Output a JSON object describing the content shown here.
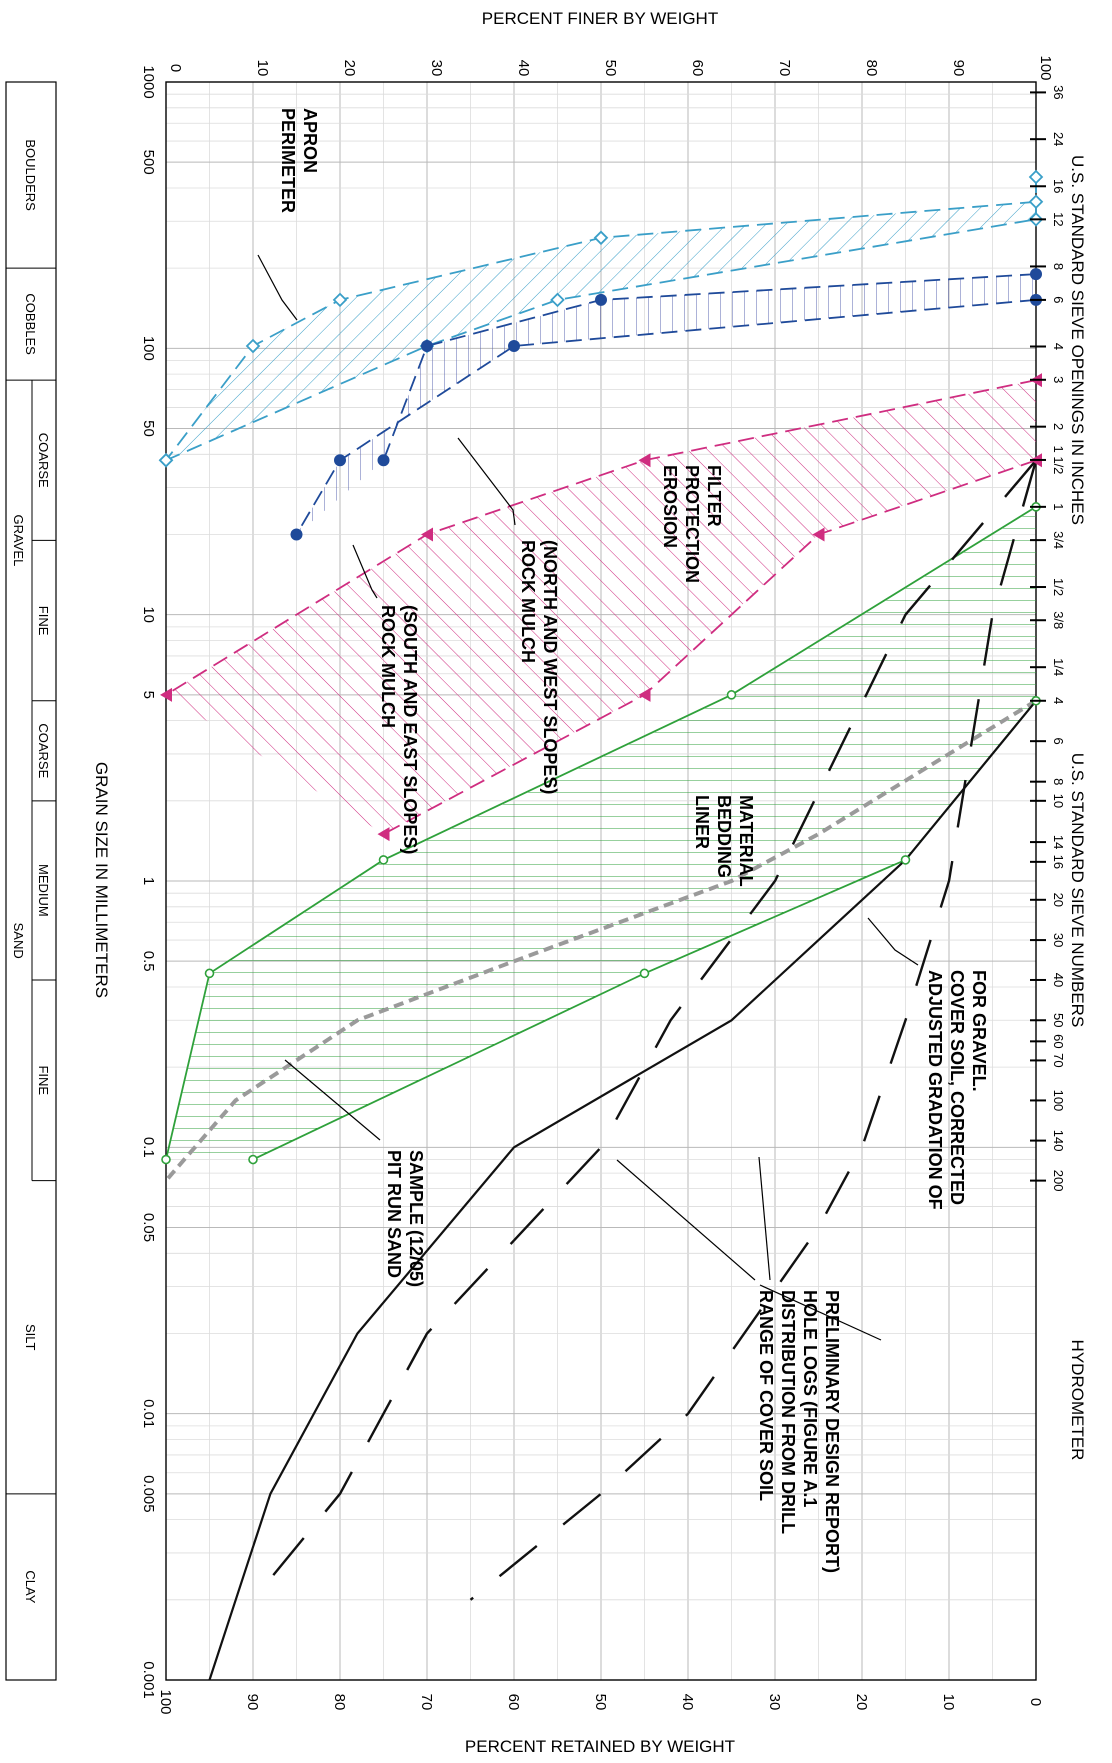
{
  "chart_data": {
    "type": "line",
    "orientation": "rotated-90-clockwise",
    "x_scale": "log",
    "xlim": [
      1000,
      0.001
    ],
    "ylim": [
      0,
      100
    ],
    "grid": true,
    "title_top": "PERCENT FINER BY WEIGHT",
    "title_bottom": "PERCENT RETAINED BY WEIGHT",
    "xlabel": "GRAIN SIZE IN MILLIMETERS",
    "sieve_inches_title": "U.S. STANDARD SIEVE OPENINGS IN INCHES",
    "sieve_numbers_title": "U.S. STANDARD SIEVE NUMBERS",
    "hydrometer_title": "HYDROMETER",
    "finer_ticks": [
      "0",
      "10",
      "20",
      "30",
      "40",
      "50",
      "60",
      "70",
      "80",
      "90",
      "100"
    ],
    "retained_ticks": [
      "100",
      "90",
      "80",
      "70",
      "60",
      "50",
      "40",
      "30",
      "20",
      "10",
      "0"
    ],
    "size_ticks": [
      {
        "v": 1000,
        "label": "1000"
      },
      {
        "v": 500,
        "label": "500"
      },
      {
        "v": 100,
        "label": "100"
      },
      {
        "v": 50,
        "label": "50"
      },
      {
        "v": 10,
        "label": "10"
      },
      {
        "v": 5,
        "label": "5"
      },
      {
        "v": 1,
        "label": "1"
      },
      {
        "v": 0.5,
        "label": "0.5"
      },
      {
        "v": 0.1,
        "label": "0.1"
      },
      {
        "v": 0.05,
        "label": "0.05"
      },
      {
        "v": 0.01,
        "label": "0.01"
      },
      {
        "v": 0.005,
        "label": "0.005"
      },
      {
        "v": 0.001,
        "label": "0.001"
      }
    ],
    "sieve_inch_ticks": [
      {
        "v": 914,
        "label": "36"
      },
      {
        "v": 610,
        "label": "24"
      },
      {
        "v": 406,
        "label": "16"
      },
      {
        "v": 305,
        "label": "12"
      },
      {
        "v": 203,
        "label": "8"
      },
      {
        "v": 152,
        "label": "6"
      },
      {
        "v": 101.6,
        "label": "4"
      },
      {
        "v": 76.2,
        "label": "3"
      },
      {
        "v": 50.8,
        "label": "2"
      },
      {
        "v": 38.1,
        "label": "1 1/2"
      },
      {
        "v": 25.4,
        "label": "1"
      },
      {
        "v": 19.05,
        "label": "3/4"
      },
      {
        "v": 12.7,
        "label": "1/2"
      },
      {
        "v": 9.53,
        "label": "3/8"
      },
      {
        "v": 6.35,
        "label": "1/4"
      }
    ],
    "sieve_number_ticks": [
      {
        "v": 4.75,
        "label": "4"
      },
      {
        "v": 3.35,
        "label": "6"
      },
      {
        "v": 2.36,
        "label": "8"
      },
      {
        "v": 2.0,
        "label": "10"
      },
      {
        "v": 1.4,
        "label": "14"
      },
      {
        "v": 1.18,
        "label": "16"
      },
      {
        "v": 0.85,
        "label": "20"
      },
      {
        "v": 0.6,
        "label": "30"
      },
      {
        "v": 0.425,
        "label": "40"
      },
      {
        "v": 0.3,
        "label": "50"
      },
      {
        "v": 0.25,
        "label": "60"
      },
      {
        "v": 0.212,
        "label": "70"
      },
      {
        "v": 0.15,
        "label": "100"
      },
      {
        "v": 0.106,
        "label": "140"
      },
      {
        "v": 0.075,
        "label": "200"
      }
    ],
    "series": [
      {
        "name": "PERIMETER APRON",
        "color": "#3a9fc8",
        "marker": "diamond",
        "hatch": "diagonal",
        "coarse": [
          [
            355,
            100
          ],
          [
            260,
            50
          ],
          [
            152,
            20
          ],
          [
            102,
            10
          ],
          [
            38,
            0
          ]
        ],
        "fine": [
          [
            440,
            100
          ],
          [
            305,
            100
          ],
          [
            152,
            45
          ],
          [
            102,
            30
          ],
          [
            38,
            0
          ]
        ]
      },
      {
        "name": "ROCK MULCH (NORTH AND WEST SLOPES)",
        "color": "#1f4a9a",
        "marker": "circle",
        "hatch": "horizontal",
        "coarse": [
          [
            152,
            100
          ],
          [
            102,
            40
          ],
          [
            38,
            20
          ],
          [
            20,
            15
          ]
        ],
        "fine": [
          [
            190,
            100
          ],
          [
            152,
            50
          ],
          [
            102,
            30
          ],
          [
            38,
            25
          ]
        ]
      },
      {
        "name": "EROSION PROTECTION FILTER",
        "color": "#cf2d80",
        "marker": "triangle",
        "hatch": "diagonal-reverse",
        "coarse": [
          [
            76,
            100
          ],
          [
            38,
            55
          ],
          [
            20,
            30
          ],
          [
            5,
            0
          ]
        ],
        "fine": [
          [
            38,
            100
          ],
          [
            20,
            75
          ],
          [
            5,
            55
          ],
          [
            1.5,
            25
          ]
        ]
      },
      {
        "name": "LINER BEDDING MATERIAL",
        "color": "#2fa13b",
        "marker": "circle-open",
        "hatch": "vertical",
        "coarse": [
          [
            25.4,
            100
          ],
          [
            5,
            65
          ],
          [
            1.2,
            25
          ],
          [
            0.45,
            5
          ],
          [
            0.09,
            0
          ]
        ],
        "fine": [
          [
            4.75,
            100
          ],
          [
            1.2,
            85
          ],
          [
            0.45,
            55
          ],
          [
            0.09,
            10
          ]
        ]
      },
      {
        "name": "PIT RUN SAND SAMPLE (12/05)",
        "color": "#9a9a9a",
        "dash": "dashed",
        "points": [
          [
            4.75,
            100
          ],
          [
            3,
            90
          ],
          [
            1.5,
            75
          ],
          [
            1,
            65
          ],
          [
            0.5,
            40
          ],
          [
            0.3,
            22
          ],
          [
            0.15,
            8
          ],
          [
            0.075,
            0
          ]
        ]
      },
      {
        "name": "ADJUSTED GRADATION OF COVER SOIL, CORRECTED FOR GRAVEL.",
        "color": "#111111",
        "dash": "solid",
        "points": [
          [
            4.75,
            100
          ],
          [
            1.2,
            85
          ],
          [
            0.6,
            75
          ],
          [
            0.3,
            65
          ],
          [
            0.1,
            40
          ],
          [
            0.02,
            22
          ],
          [
            0.005,
            12
          ],
          [
            0.001,
            5
          ]
        ]
      },
      {
        "name": "RANGE OF COVER SOIL DISTRIBUTION FROM DRILL HOLE LOGS (FIGURE A.1 PRELIMINARY DESIGN REPORT)",
        "color": "#111111",
        "dash": "long-dash",
        "upper": [
          [
            38,
            100
          ],
          [
            10,
            85
          ],
          [
            1,
            70
          ],
          [
            0.3,
            58
          ],
          [
            0.1,
            50
          ],
          [
            0.02,
            30
          ],
          [
            0.005,
            20
          ],
          [
            0.002,
            10
          ]
        ],
        "lower": [
          [
            38,
            100
          ],
          [
            10,
            95
          ],
          [
            1,
            90
          ],
          [
            0.3,
            85
          ],
          [
            0.1,
            80
          ],
          [
            0.05,
            75
          ],
          [
            0.01,
            60
          ],
          [
            0.005,
            50
          ],
          [
            0.002,
            35
          ]
        ]
      }
    ],
    "classification": [
      {
        "label": "BOULDERS",
        "from": 1000,
        "to": 200
      },
      {
        "label": "COBBLES",
        "from": 200,
        "to": 76
      },
      {
        "group": "GRAVEL",
        "label": "COARSE",
        "from": 76,
        "to": 19
      },
      {
        "group": "GRAVEL",
        "label": "FINE",
        "from": 19,
        "to": 4.75
      },
      {
        "group": "SAND",
        "label": "COARSE",
        "from": 4.75,
        "to": 2.0
      },
      {
        "group": "SAND",
        "label": "MEDIUM",
        "from": 2.0,
        "to": 0.425
      },
      {
        "group": "SAND",
        "label": "FINE",
        "from": 0.425,
        "to": 0.075
      },
      {
        "label": "SILT",
        "from": 0.075,
        "to": 0.005
      },
      {
        "label": "CLAY",
        "from": 0.005,
        "to": 0.001
      }
    ]
  },
  "annotations": {
    "perimeter_apron": [
      "PERIMETER",
      "APRON"
    ],
    "rock_mulch_nw": [
      "ROCK MULCH",
      "(NORTH AND WEST SLOPES)"
    ],
    "rock_mulch_se": [
      "ROCK MULCH",
      "(SOUTH AND EAST SLOPES)"
    ],
    "erosion": [
      "EROSION",
      "PROTECTION",
      "FILTER"
    ],
    "liner": [
      "LINER",
      "BEDDING",
      "MATERIAL"
    ],
    "pit_run": [
      "PIT RUN SAND",
      "SAMPLE (12/05)"
    ],
    "adjusted": [
      "ADJUSTED GRADATION OF",
      "COVER SOIL, CORRECTED",
      "FOR GRAVEL."
    ],
    "range": [
      "RANGE OF COVER SOIL",
      "DISTRIBUTION FROM DRILL",
      "HOLE LOGS (FIGURE A.1",
      "PRELIMINARY DESIGN REPORT)"
    ]
  }
}
